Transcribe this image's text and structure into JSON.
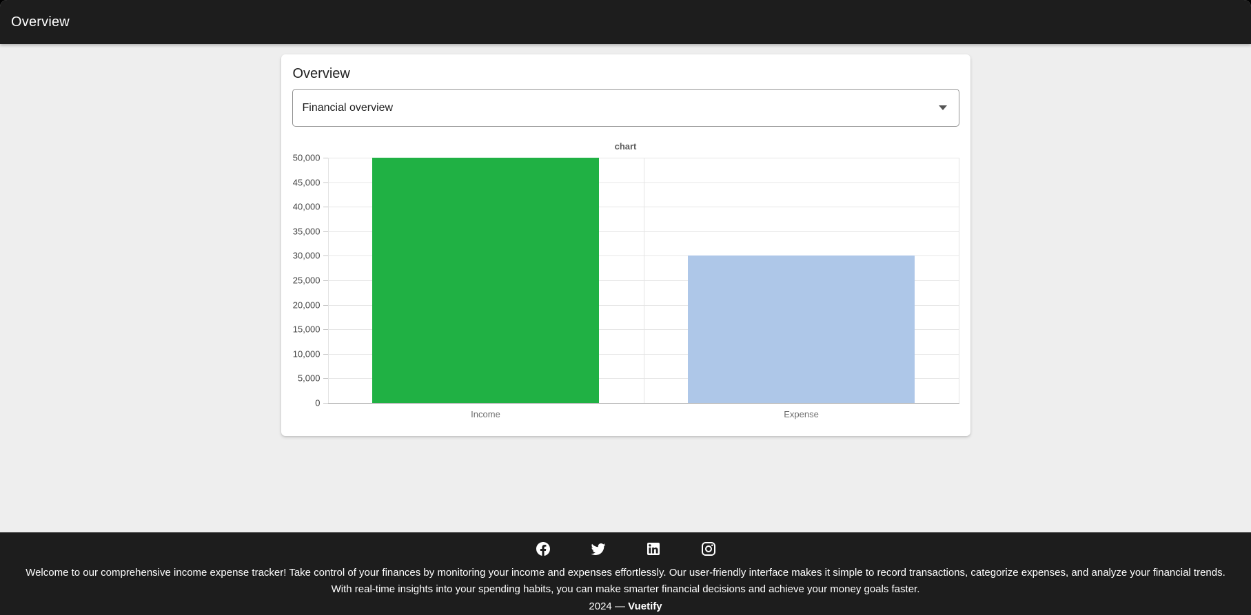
{
  "app_bar": {
    "title": "Overview"
  },
  "page": {
    "card_title": "Overview",
    "select_value": "Financial overview"
  },
  "chart_data": {
    "type": "bar",
    "title": "chart",
    "categories": [
      "Income",
      "Expense"
    ],
    "values": [
      50000,
      30000
    ],
    "bar_colors": [
      "#20b144",
      "#aec7e8"
    ],
    "ylim": [
      0,
      50000
    ],
    "ytick_step": 5000,
    "grid": true,
    "legend_position": "none",
    "xlabel": "",
    "ylabel": ""
  },
  "footer": {
    "icons": [
      {
        "name": "facebook"
      },
      {
        "name": "twitter"
      },
      {
        "name": "linkedin"
      },
      {
        "name": "instagram"
      }
    ],
    "description": "Welcome to our comprehensive income expense tracker! Take control of your finances by monitoring your income and expenses effortlessly. Our user-friendly interface makes it simple to record transactions, categorize expenses, and analyze your financial trends. With real-time insights into your spending habits, you can make smarter financial decisions and achieve your money goals faster.",
    "copyright_prefix": "2024 —",
    "copyright_brand": "Vuetify"
  }
}
